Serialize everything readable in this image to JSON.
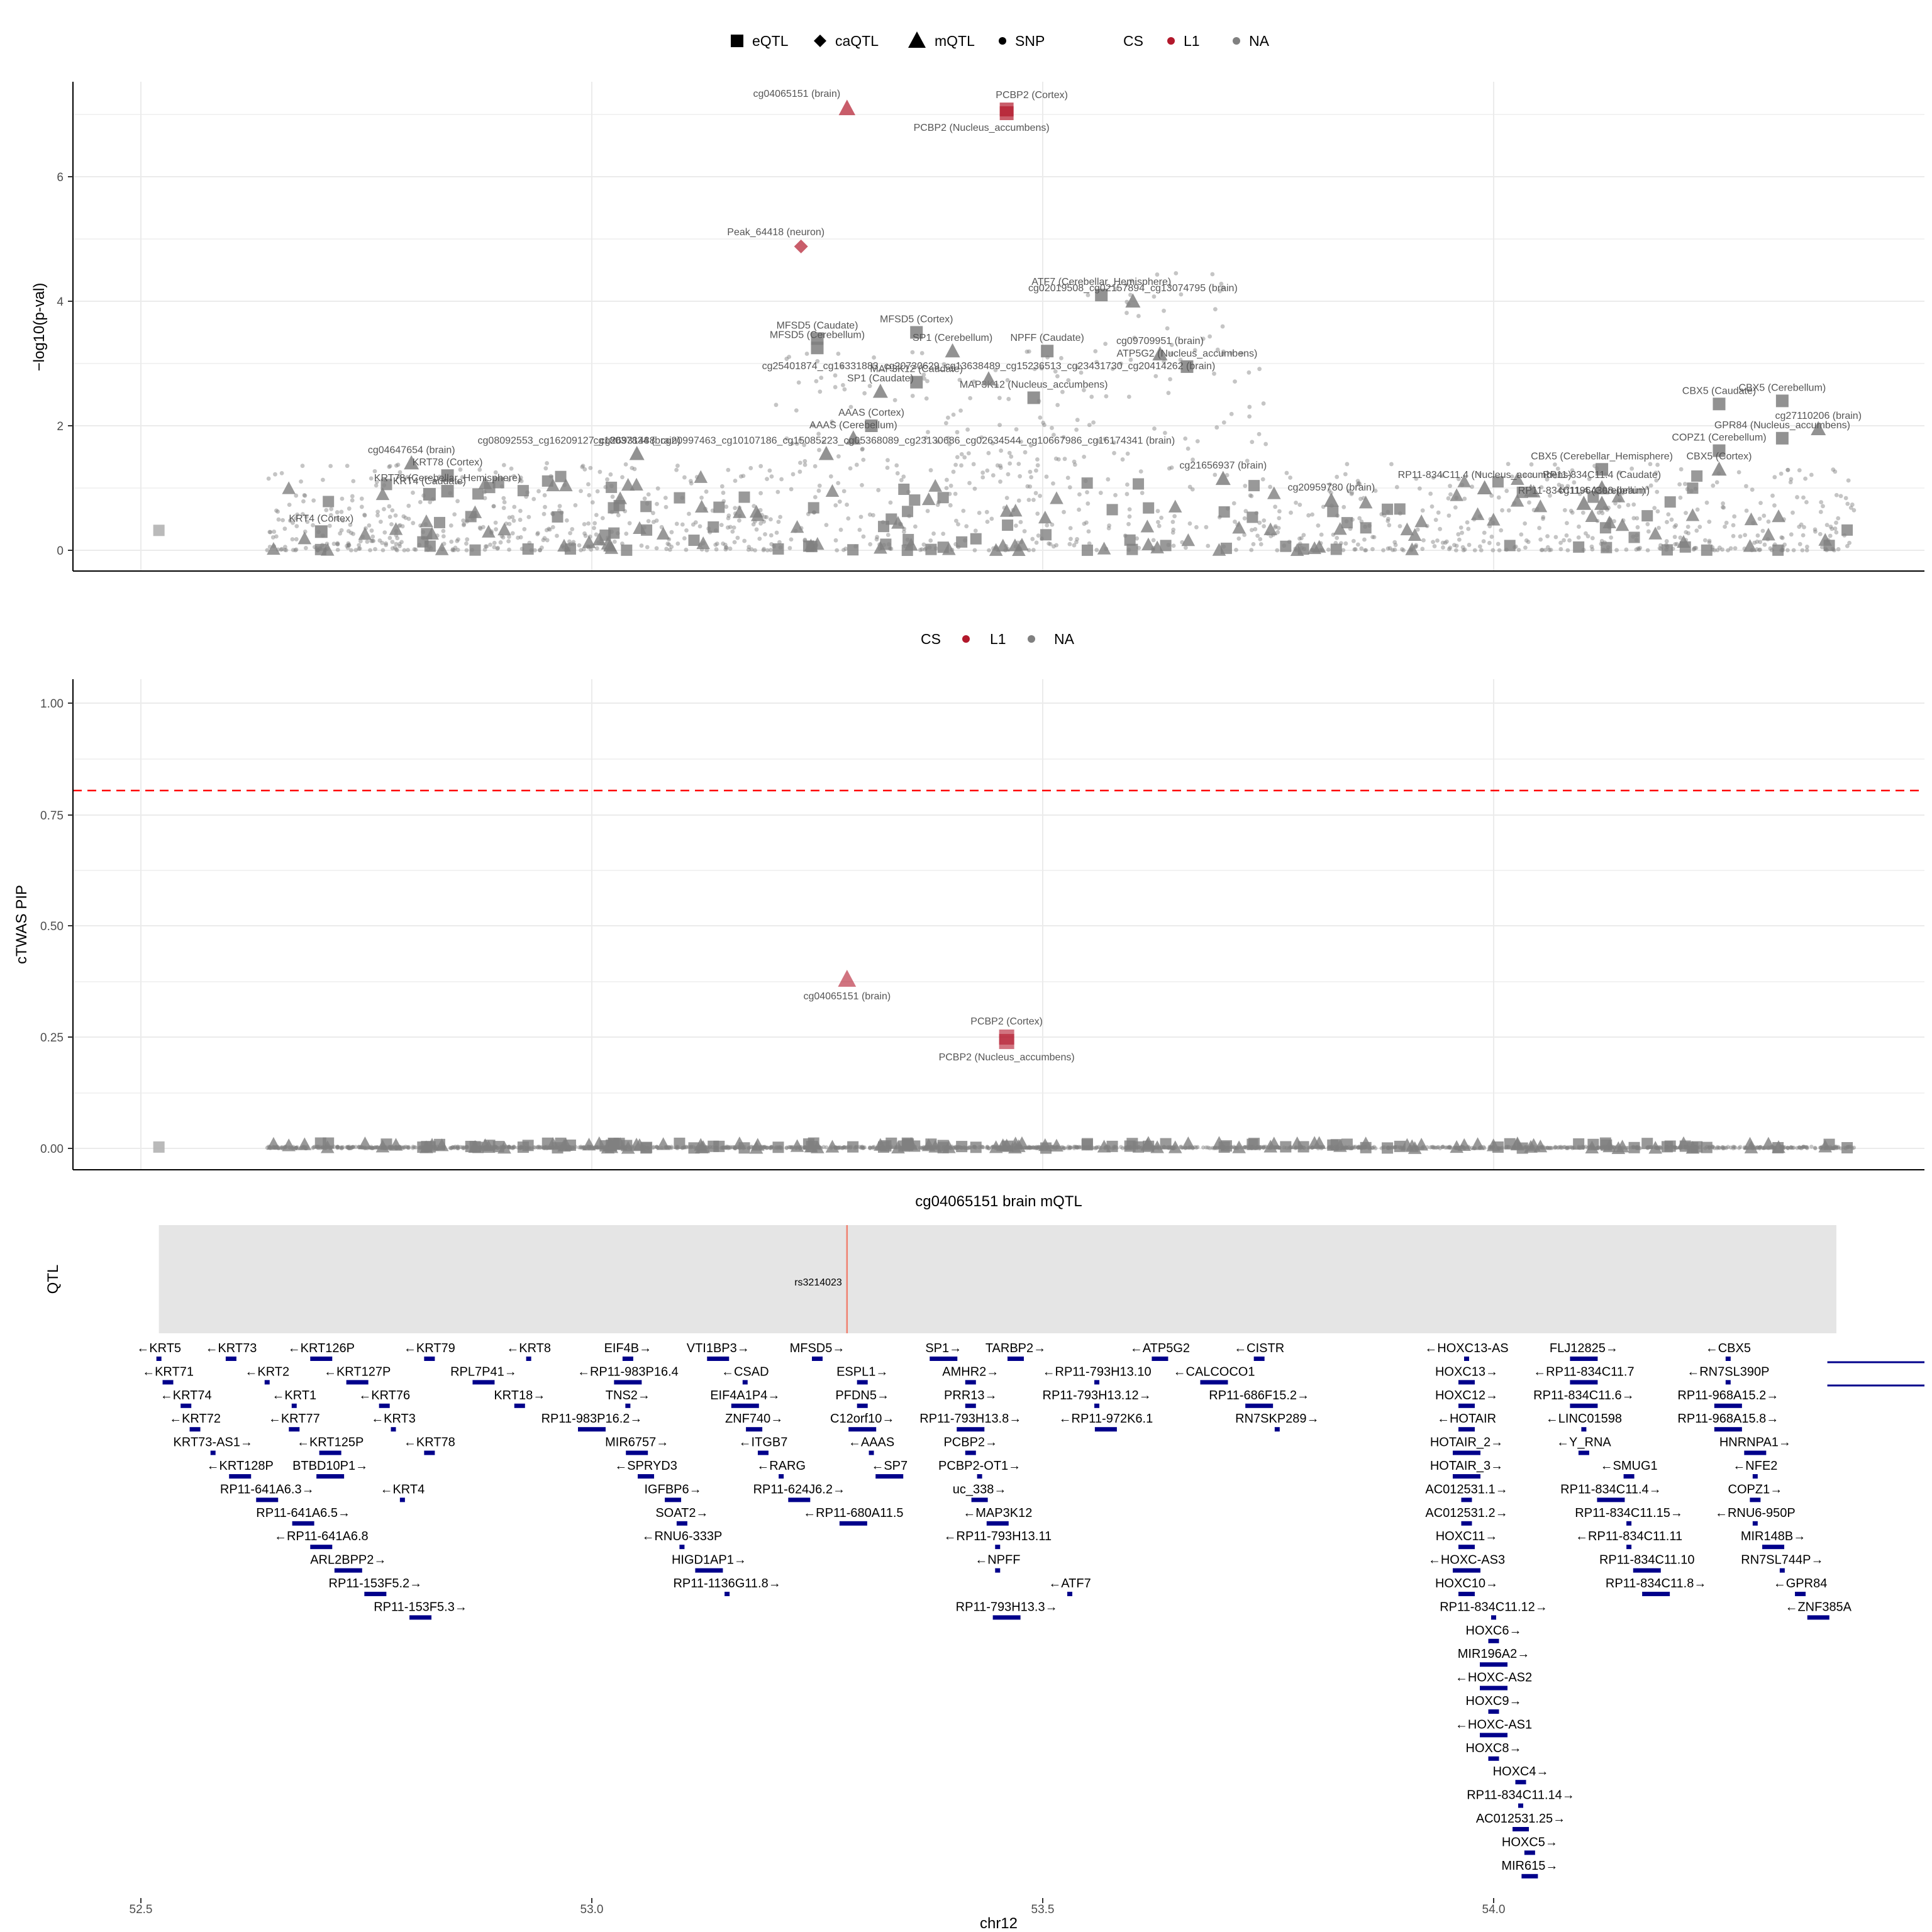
{
  "chart_data": [
    {
      "type": "scatter",
      "panel": "locus",
      "ylabel": "−log10(p-val)",
      "ylim": [
        0,
        7.3
      ],
      "xlim": [
        52.35,
        54.47
      ],
      "yticks": [
        "0",
        "2",
        "4",
        "6"
      ],
      "legend_shapes": {
        "title": "",
        "items": [
          "eQTL",
          "caQTL",
          "mQTL",
          "SNP"
        ]
      },
      "legend_cs": {
        "title": "CS",
        "items": [
          "L1",
          "NA"
        ]
      },
      "colors": {
        "L1": "#b2182b",
        "NA": "#808080"
      },
      "highlighted_points": [
        {
          "x": 53.283,
          "y": 7.1,
          "shape": "mQTL",
          "cs": "L1",
          "label": "cg04065151 (brain)"
        },
        {
          "x": 53.46,
          "y": 7.08,
          "shape": "eQTL",
          "cs": "L1",
          "label": "PCBP2 (Cortex)"
        },
        {
          "x": 53.46,
          "y": 7.02,
          "shape": "eQTL",
          "cs": "L1",
          "label": "PCBP2 (Nucleus_accumbens)"
        },
        {
          "x": 53.232,
          "y": 4.88,
          "shape": "caQTL",
          "cs": "L1",
          "label": "Peak_64418 (neuron)"
        }
      ],
      "labeled_points": [
        {
          "x": 53.565,
          "y": 4.1,
          "shape": "eQTL",
          "label": "ATF7 (Cerebellar_Hemisphere)"
        },
        {
          "x": 53.6,
          "y": 4.0,
          "shape": "mQTL",
          "label": "cg02019508_cg02157894_cg13074795 (brain)"
        },
        {
          "x": 53.25,
          "y": 3.4,
          "shape": "eQTL",
          "label": "MFSD5 (Caudate)"
        },
        {
          "x": 53.36,
          "y": 3.5,
          "shape": "eQTL",
          "label": "MFSD5 (Cortex)"
        },
        {
          "x": 53.25,
          "y": 3.25,
          "shape": "eQTL",
          "label": "MFSD5 (Cerebellum)"
        },
        {
          "x": 53.63,
          "y": 3.15,
          "shape": "mQTL",
          "label": "cg09709951 (brain)"
        },
        {
          "x": 53.4,
          "y": 3.2,
          "shape": "mQTL",
          "label": "SP1 (Cerebellum)"
        },
        {
          "x": 53.505,
          "y": 3.2,
          "shape": "eQTL",
          "label": "NPFF (Caudate)"
        },
        {
          "x": 53.66,
          "y": 2.95,
          "shape": "eQTL",
          "label": "ATP5G2 (Nucleus_accumbens)"
        },
        {
          "x": 53.36,
          "y": 2.7,
          "shape": "eQTL",
          "label": "MAP3K12 (Caudate)"
        },
        {
          "x": 53.49,
          "y": 2.45,
          "shape": "eQTL",
          "label": "MAP3K12 (Nucleus_accumbens)"
        },
        {
          "x": 53.32,
          "y": 2.55,
          "shape": "mQTL",
          "label": "SP1 (Caudate)"
        },
        {
          "x": 53.44,
          "y": 2.75,
          "shape": "mQTL",
          "label": "cg25401874_cg16331883_cg20730629_cg13638489_cg15236513_cg23431730_cg20414262 (brain)"
        },
        {
          "x": 53.31,
          "y": 2.0,
          "shape": "eQTL",
          "label": "AAAS (Cortex)"
        },
        {
          "x": 53.29,
          "y": 1.8,
          "shape": "mQTL",
          "label": "AAAS (Cerebellum)"
        },
        {
          "x": 53.05,
          "y": 1.55,
          "shape": "mQTL",
          "label": "cg18037834 (brain)"
        },
        {
          "x": 52.8,
          "y": 1.4,
          "shape": "mQTL",
          "label": "cg04647654 (brain)"
        },
        {
          "x": 52.84,
          "y": 1.2,
          "shape": "eQTL",
          "label": "KRT78 (Cortex)"
        },
        {
          "x": 52.84,
          "y": 0.95,
          "shape": "eQTL",
          "label": "KRT78 (Cerebellar_Hemisphere)"
        },
        {
          "x": 52.82,
          "y": 0.9,
          "shape": "eQTL",
          "label": "KRT4 (Caudate)"
        },
        {
          "x": 52.7,
          "y": 0.3,
          "shape": "eQTL",
          "label": "KRT4 (Cortex)"
        },
        {
          "x": 53.26,
          "y": 1.55,
          "shape": "mQTL",
          "label": "cg08092553_cg16209127_cg26931488_cg20997463_cg10107186_cg15085223_cg05368089_cg23130686_cg02634544_cg10667986_cg16174341 (brain)"
        },
        {
          "x": 53.7,
          "y": 1.15,
          "shape": "mQTL",
          "label": "cg21656937 (brain)"
        },
        {
          "x": 53.99,
          "y": 1.0,
          "shape": "mQTL",
          "label": "RP11-834C11.4 (Nucleus_accumbens)"
        },
        {
          "x": 53.82,
          "y": 0.8,
          "shape": "mQTL",
          "label": "cg20959780 (brain)"
        },
        {
          "x": 54.12,
          "y": 1.3,
          "shape": "eQTL",
          "label": "CBX5 (Cerebellar_Hemisphere)"
        },
        {
          "x": 54.12,
          "y": 1.0,
          "shape": "mQTL",
          "label": "RP11-834C11.4 (Caudate)"
        },
        {
          "x": 54.1,
          "y": 0.75,
          "shape": "mQTL",
          "label": "RP11-834C11.4 (Cerebellum)"
        },
        {
          "x": 54.12,
          "y": 0.75,
          "shape": "mQTL",
          "label": "cg11964308 (brain)"
        },
        {
          "x": 54.25,
          "y": 2.35,
          "shape": "eQTL",
          "label": "CBX5 (Caudate)"
        },
        {
          "x": 54.32,
          "y": 2.4,
          "shape": "eQTL",
          "label": "CBX5 (Cerebellum)"
        },
        {
          "x": 54.36,
          "y": 1.95,
          "shape": "mQTL",
          "label": "cg27110206 (brain)"
        },
        {
          "x": 54.25,
          "y": 1.6,
          "shape": "eQTL",
          "label": "COPZ1 (Cerebellum)"
        },
        {
          "x": 54.25,
          "y": 1.3,
          "shape": "mQTL",
          "label": "CBX5 (Cortex)"
        },
        {
          "x": 54.32,
          "y": 1.8,
          "shape": "eQTL",
          "label": "GPR84 (Nucleus_accumbens)"
        }
      ]
    },
    {
      "type": "scatter",
      "panel": "ctwas",
      "ylabel": "cTWAS PIP",
      "ylim": [
        -0.05,
        1.05
      ],
      "xlim": [
        52.35,
        54.47
      ],
      "yticks": [
        "0.00",
        "0.25",
        "0.50",
        "0.75",
        "1.00"
      ],
      "threshold": 0.8,
      "legend_cs": {
        "title": "CS",
        "items": [
          "L1",
          "NA"
        ]
      },
      "highlighted_points": [
        {
          "x": 53.283,
          "y": 0.38,
          "shape": "mQTL",
          "cs": "L1",
          "label": "cg04065151 (brain)"
        },
        {
          "x": 53.46,
          "y": 0.25,
          "shape": "eQTL",
          "cs": "L1",
          "label": "PCBP2 (Cortex)"
        },
        {
          "x": 53.46,
          "y": 0.24,
          "shape": "eQTL",
          "cs": "L1",
          "label": "PCBP2 (Nucleus_accumbens)"
        }
      ]
    },
    {
      "type": "track",
      "panel": "qtl",
      "title": "cg04065151 brain mQTL",
      "ylabel": "QTL",
      "region": [
        52.52,
        54.38
      ],
      "marker": {
        "x": 53.283,
        "label": "rs3214023"
      }
    },
    {
      "type": "gene_track",
      "panel": "genes",
      "xlabel": "chr12",
      "xticks": [
        52.5,
        53.0,
        53.5,
        54.0
      ],
      "xtick_labels": [
        "52.5",
        "53.0",
        "53.5",
        "54.0"
      ],
      "gene_labels": [
        {
          "x": 52.52,
          "row": 0,
          "text": "←KRT5"
        },
        {
          "x": 52.6,
          "row": 0,
          "text": "←KRT73"
        },
        {
          "x": 52.7,
          "row": 0,
          "text": "←KRT126P"
        },
        {
          "x": 52.82,
          "row": 0,
          "text": "←KRT79"
        },
        {
          "x": 52.93,
          "row": 0,
          "text": "←KRT8"
        },
        {
          "x": 53.04,
          "row": 0,
          "text": "EIF4B→"
        },
        {
          "x": 53.14,
          "row": 0,
          "text": "VTI1BP3→"
        },
        {
          "x": 53.25,
          "row": 0,
          "text": "MFSD5→"
        },
        {
          "x": 53.39,
          "row": 0,
          "text": "SP1→"
        },
        {
          "x": 53.47,
          "row": 0,
          "text": "TARBP2→"
        },
        {
          "x": 53.63,
          "row": 0,
          "text": "←ATP5G2"
        },
        {
          "x": 53.74,
          "row": 0,
          "text": "←CISTR"
        },
        {
          "x": 53.97,
          "row": 0,
          "text": "←HOXC13-AS"
        },
        {
          "x": 54.1,
          "row": 0,
          "text": "FLJ12825→"
        },
        {
          "x": 54.26,
          "row": 0,
          "text": "←CBX5"
        },
        {
          "x": 52.53,
          "row": 1,
          "text": "←KRT71"
        },
        {
          "x": 52.64,
          "row": 1,
          "text": "←KRT2"
        },
        {
          "x": 52.74,
          "row": 1,
          "text": "←KRT127P"
        },
        {
          "x": 52.88,
          "row": 1,
          "text": "RPL7P41→"
        },
        {
          "x": 53.04,
          "row": 1,
          "text": "←RP11-983P16.4"
        },
        {
          "x": 53.17,
          "row": 1,
          "text": "←CSAD"
        },
        {
          "x": 53.3,
          "row": 1,
          "text": "ESPL1→"
        },
        {
          "x": 53.42,
          "row": 1,
          "text": "AMHR2→"
        },
        {
          "x": 53.56,
          "row": 1,
          "text": "←RP11-793H13.10"
        },
        {
          "x": 53.69,
          "row": 1,
          "text": "←CALCOCO1"
        },
        {
          "x": 53.97,
          "row": 1,
          "text": "HOXC13→"
        },
        {
          "x": 54.1,
          "row": 1,
          "text": "←RP11-834C11.7"
        },
        {
          "x": 54.26,
          "row": 1,
          "text": "←RN7SL390P"
        },
        {
          "x": 52.55,
          "row": 2,
          "text": "←KRT74"
        },
        {
          "x": 52.67,
          "row": 2,
          "text": "←KRT1"
        },
        {
          "x": 52.77,
          "row": 2,
          "text": "←KRT76"
        },
        {
          "x": 52.92,
          "row": 2,
          "text": "KRT18→"
        },
        {
          "x": 53.04,
          "row": 2,
          "text": "TNS2→"
        },
        {
          "x": 53.17,
          "row": 2,
          "text": "EIF4A1P4→"
        },
        {
          "x": 53.3,
          "row": 2,
          "text": "PFDN5→"
        },
        {
          "x": 53.42,
          "row": 2,
          "text": "PRR13→"
        },
        {
          "x": 53.56,
          "row": 2,
          "text": "RP11-793H13.12→"
        },
        {
          "x": 53.74,
          "row": 2,
          "text": "RP11-686F15.2→"
        },
        {
          "x": 53.97,
          "row": 2,
          "text": "HOXC12→"
        },
        {
          "x": 54.1,
          "row": 2,
          "text": "RP11-834C11.6→"
        },
        {
          "x": 54.26,
          "row": 2,
          "text": "RP11-968A15.2→"
        },
        {
          "x": 52.56,
          "row": 3,
          "text": "←KRT72"
        },
        {
          "x": 52.67,
          "row": 3,
          "text": "←KRT77"
        },
        {
          "x": 52.78,
          "row": 3,
          "text": "←KRT3"
        },
        {
          "x": 53.0,
          "row": 3,
          "text": "RP11-983P16.2→"
        },
        {
          "x": 53.18,
          "row": 3,
          "text": "ZNF740→"
        },
        {
          "x": 53.3,
          "row": 3,
          "text": "C12orf10→"
        },
        {
          "x": 53.42,
          "row": 3,
          "text": "RP11-793H13.8→"
        },
        {
          "x": 53.57,
          "row": 3,
          "text": "←RP11-972K6.1"
        },
        {
          "x": 53.76,
          "row": 3,
          "text": "RN7SKP289→"
        },
        {
          "x": 53.97,
          "row": 3,
          "text": "←HOTAIR"
        },
        {
          "x": 54.1,
          "row": 3,
          "text": "←LINC01598"
        },
        {
          "x": 54.26,
          "row": 3,
          "text": "RP11-968A15.8→"
        },
        {
          "x": 52.58,
          "row": 4,
          "text": "KRT73-AS1→"
        },
        {
          "x": 52.71,
          "row": 4,
          "text": "←KRT125P"
        },
        {
          "x": 52.82,
          "row": 4,
          "text": "←KRT78"
        },
        {
          "x": 53.05,
          "row": 4,
          "text": "MIR6757→"
        },
        {
          "x": 53.19,
          "row": 4,
          "text": "←ITGB7"
        },
        {
          "x": 53.31,
          "row": 4,
          "text": "←AAAS"
        },
        {
          "x": 53.42,
          "row": 4,
          "text": "PCBP2→"
        },
        {
          "x": 53.97,
          "row": 4,
          "text": "HOTAIR_2→"
        },
        {
          "x": 54.1,
          "row": 4,
          "text": "←Y_RNA"
        },
        {
          "x": 54.29,
          "row": 4,
          "text": "HNRNPA1→"
        },
        {
          "x": 52.61,
          "row": 5,
          "text": "←KRT128P"
        },
        {
          "x": 52.71,
          "row": 5,
          "text": "BTBD10P1→"
        },
        {
          "x": 53.06,
          "row": 5,
          "text": "←SPRYD3"
        },
        {
          "x": 53.21,
          "row": 5,
          "text": "←RARG"
        },
        {
          "x": 53.33,
          "row": 5,
          "text": "←SP7"
        },
        {
          "x": 53.43,
          "row": 5,
          "text": "PCBP2-OT1→"
        },
        {
          "x": 53.97,
          "row": 5,
          "text": "HOTAIR_3→"
        },
        {
          "x": 54.15,
          "row": 5,
          "text": "←SMUG1"
        },
        {
          "x": 54.29,
          "row": 5,
          "text": "←NFE2"
        },
        {
          "x": 52.64,
          "row": 6,
          "text": "RP11-641A6.3→"
        },
        {
          "x": 52.79,
          "row": 6,
          "text": "←KRT4"
        },
        {
          "x": 53.09,
          "row": 6,
          "text": "IGFBP6→"
        },
        {
          "x": 53.23,
          "row": 6,
          "text": "RP11-624J6.2→"
        },
        {
          "x": 53.43,
          "row": 6,
          "text": "uc_338→"
        },
        {
          "x": 53.97,
          "row": 6,
          "text": "AC012531.1→"
        },
        {
          "x": 54.13,
          "row": 6,
          "text": "RP11-834C11.4→"
        },
        {
          "x": 54.29,
          "row": 6,
          "text": "COPZ1→"
        },
        {
          "x": 52.68,
          "row": 7,
          "text": "RP11-641A6.5→"
        },
        {
          "x": 53.1,
          "row": 7,
          "text": "SOAT2→"
        },
        {
          "x": 53.29,
          "row": 7,
          "text": "←RP11-680A11.5"
        },
        {
          "x": 53.45,
          "row": 7,
          "text": "←MAP3K12"
        },
        {
          "x": 53.97,
          "row": 7,
          "text": "AC012531.2→"
        },
        {
          "x": 54.15,
          "row": 7,
          "text": "RP11-834C11.15→"
        },
        {
          "x": 54.29,
          "row": 7,
          "text": "←RNU6-950P"
        },
        {
          "x": 52.7,
          "row": 8,
          "text": "←RP11-641A6.8"
        },
        {
          "x": 53.1,
          "row": 8,
          "text": "←RNU6-333P"
        },
        {
          "x": 53.45,
          "row": 8,
          "text": "←RP11-793H13.11"
        },
        {
          "x": 53.97,
          "row": 8,
          "text": "HOXC11→"
        },
        {
          "x": 54.15,
          "row": 8,
          "text": "←RP11-834C11.11"
        },
        {
          "x": 54.31,
          "row": 8,
          "text": "MIR148B→"
        },
        {
          "x": 52.73,
          "row": 9,
          "text": "ARL2BPP2→"
        },
        {
          "x": 53.13,
          "row": 9,
          "text": "HIGD1AP1→"
        },
        {
          "x": 53.45,
          "row": 9,
          "text": "←NPFF"
        },
        {
          "x": 53.97,
          "row": 9,
          "text": "←HOXC-AS3"
        },
        {
          "x": 54.17,
          "row": 9,
          "text": "RP11-834C11.10"
        },
        {
          "x": 54.32,
          "row": 9,
          "text": "RN7SL744P→"
        },
        {
          "x": 52.76,
          "row": 10,
          "text": "RP11-153F5.2→"
        },
        {
          "x": 53.15,
          "row": 10,
          "text": "RP11-1136G11.8→"
        },
        {
          "x": 53.53,
          "row": 10,
          "text": "←ATF7"
        },
        {
          "x": 53.97,
          "row": 10,
          "text": "HOXC10→"
        },
        {
          "x": 54.18,
          "row": 10,
          "text": "RP11-834C11.8→"
        },
        {
          "x": 54.34,
          "row": 10,
          "text": "←GPR84"
        },
        {
          "x": 52.81,
          "row": 11,
          "text": "RP11-153F5.3→"
        },
        {
          "x": 53.46,
          "row": 11,
          "text": "RP11-793H13.3→"
        },
        {
          "x": 54.0,
          "row": 11,
          "text": "RP11-834C11.12→"
        },
        {
          "x": 54.36,
          "row": 11,
          "text": "←ZNF385A"
        },
        {
          "x": 54.0,
          "row": 12,
          "text": "HOXC6→"
        },
        {
          "x": 54.0,
          "row": 13,
          "text": "MIR196A2→"
        },
        {
          "x": 54.0,
          "row": 14,
          "text": "←HOXC-AS2"
        },
        {
          "x": 54.0,
          "row": 15,
          "text": "HOXC9→"
        },
        {
          "x": 54.0,
          "row": 16,
          "text": "←HOXC-AS1"
        },
        {
          "x": 54.0,
          "row": 17,
          "text": "HOXC8→"
        },
        {
          "x": 54.03,
          "row": 18,
          "text": "HOXC4→"
        },
        {
          "x": 54.03,
          "row": 19,
          "text": "RP11-834C11.14→"
        },
        {
          "x": 54.03,
          "row": 20,
          "text": "AC012531.25→"
        },
        {
          "x": 54.04,
          "row": 21,
          "text": "HOXC5→"
        },
        {
          "x": 54.04,
          "row": 22,
          "text": "MIR615→"
        }
      ]
    }
  ]
}
